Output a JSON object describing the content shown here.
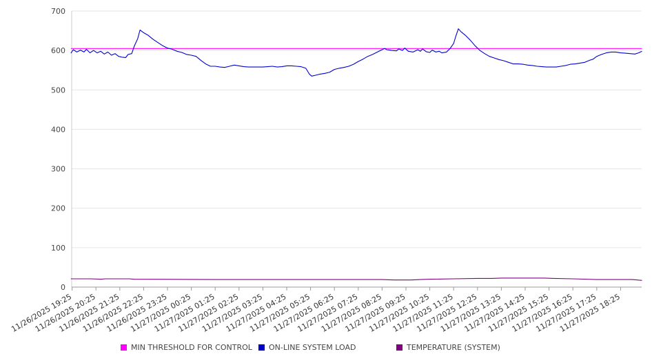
{
  "chart_data": {
    "type": "line",
    "ylim": [
      0,
      700
    ],
    "yticks": [
      0,
      100,
      200,
      300,
      400,
      500,
      600,
      700
    ],
    "x_labels": [
      "11/26/2025 19:25",
      "11/26/2025 20:25",
      "11/26/2025 21:25",
      "11/26/2025 22:25",
      "11/26/2025 23:25",
      "11/27/2025 00:25",
      "11/27/2025 01:25",
      "11/27/2025 02:25",
      "11/27/2025 03:25",
      "11/27/2025 04:25",
      "11/27/2025 05:25",
      "11/27/2025 06:25",
      "11/27/2025 07:25",
      "11/27/2025 08:25",
      "11/27/2025 09:25",
      "11/27/2025 10:25",
      "11/27/2025 11:25",
      "11/27/2025 12:25",
      "11/27/2025 13:25",
      "11/27/2025 14:25",
      "11/27/2025 15:25",
      "11/27/2025 16:25",
      "11/27/2025 17:25",
      "11/27/2025 18:25"
    ],
    "x_hours": [
      0,
      1,
      2,
      3,
      4,
      5,
      6,
      7,
      8,
      9,
      10,
      11,
      12,
      13,
      14,
      15,
      16,
      17,
      18,
      19,
      20,
      21,
      22,
      23
    ],
    "series": [
      {
        "name": "MIN THRESHOLD FOR CONTROL",
        "color": "#ff00ff",
        "points": [
          [
            -0.05,
            605
          ],
          [
            23.9,
            605
          ]
        ]
      },
      {
        "name": "ON-LINE SYSTEM LOAD",
        "color": "#0000cc",
        "points": [
          [
            -0.05,
            593
          ],
          [
            0.05,
            602
          ],
          [
            0.2,
            596
          ],
          [
            0.35,
            601
          ],
          [
            0.5,
            596
          ],
          [
            0.6,
            603
          ],
          [
            0.75,
            594
          ],
          [
            0.9,
            600
          ],
          [
            1.05,
            594
          ],
          [
            1.2,
            598
          ],
          [
            1.35,
            591
          ],
          [
            1.5,
            596
          ],
          [
            1.65,
            588
          ],
          [
            1.8,
            592
          ],
          [
            1.95,
            585
          ],
          [
            2.1,
            583
          ],
          [
            2.25,
            582
          ],
          [
            2.35,
            590
          ],
          [
            2.5,
            592
          ],
          [
            2.6,
            610
          ],
          [
            2.75,
            630
          ],
          [
            2.85,
            652
          ],
          [
            3.0,
            645
          ],
          [
            3.2,
            638
          ],
          [
            3.4,
            628
          ],
          [
            3.6,
            620
          ],
          [
            3.8,
            612
          ],
          [
            4.0,
            606
          ],
          [
            4.2,
            603
          ],
          [
            4.4,
            598
          ],
          [
            4.6,
            595
          ],
          [
            4.8,
            590
          ],
          [
            5.0,
            588
          ],
          [
            5.2,
            585
          ],
          [
            5.4,
            575
          ],
          [
            5.6,
            566
          ],
          [
            5.8,
            560
          ],
          [
            6.0,
            560
          ],
          [
            6.2,
            558
          ],
          [
            6.4,
            557
          ],
          [
            6.6,
            560
          ],
          [
            6.8,
            563
          ],
          [
            7.0,
            561
          ],
          [
            7.2,
            559
          ],
          [
            7.4,
            558
          ],
          [
            7.6,
            558
          ],
          [
            7.8,
            558
          ],
          [
            8.0,
            558
          ],
          [
            8.2,
            559
          ],
          [
            8.4,
            560
          ],
          [
            8.6,
            558
          ],
          [
            8.8,
            559
          ],
          [
            9.0,
            561
          ],
          [
            9.2,
            561
          ],
          [
            9.4,
            560
          ],
          [
            9.6,
            559
          ],
          [
            9.8,
            555
          ],
          [
            9.95,
            540
          ],
          [
            10.05,
            535
          ],
          [
            10.2,
            537
          ],
          [
            10.4,
            540
          ],
          [
            10.6,
            542
          ],
          [
            10.8,
            545
          ],
          [
            11.0,
            552
          ],
          [
            11.2,
            555
          ],
          [
            11.4,
            557
          ],
          [
            11.6,
            560
          ],
          [
            11.8,
            565
          ],
          [
            12.0,
            572
          ],
          [
            12.2,
            578
          ],
          [
            12.4,
            585
          ],
          [
            12.6,
            590
          ],
          [
            12.8,
            596
          ],
          [
            13.0,
            602
          ],
          [
            13.1,
            605
          ],
          [
            13.2,
            602
          ],
          [
            13.4,
            600
          ],
          [
            13.6,
            599
          ],
          [
            13.7,
            604
          ],
          [
            13.85,
            600
          ],
          [
            13.95,
            606
          ],
          [
            14.1,
            598
          ],
          [
            14.3,
            596
          ],
          [
            14.5,
            602
          ],
          [
            14.6,
            598
          ],
          [
            14.7,
            604
          ],
          [
            14.85,
            597
          ],
          [
            15.0,
            595
          ],
          [
            15.1,
            601
          ],
          [
            15.25,
            596
          ],
          [
            15.4,
            598
          ],
          [
            15.5,
            594
          ],
          [
            15.7,
            596
          ],
          [
            15.85,
            605
          ],
          [
            16.0,
            618
          ],
          [
            16.1,
            638
          ],
          [
            16.2,
            655
          ],
          [
            16.3,
            648
          ],
          [
            16.5,
            638
          ],
          [
            16.7,
            626
          ],
          [
            16.9,
            612
          ],
          [
            17.1,
            600
          ],
          [
            17.3,
            592
          ],
          [
            17.5,
            585
          ],
          [
            17.7,
            581
          ],
          [
            17.9,
            577
          ],
          [
            18.1,
            574
          ],
          [
            18.3,
            570
          ],
          [
            18.5,
            566
          ],
          [
            18.7,
            566
          ],
          [
            18.9,
            565
          ],
          [
            19.1,
            563
          ],
          [
            19.3,
            562
          ],
          [
            19.5,
            560
          ],
          [
            19.7,
            559
          ],
          [
            19.9,
            558
          ],
          [
            20.1,
            558
          ],
          [
            20.3,
            558
          ],
          [
            20.5,
            560
          ],
          [
            20.7,
            562
          ],
          [
            20.9,
            565
          ],
          [
            21.1,
            566
          ],
          [
            21.3,
            568
          ],
          [
            21.5,
            570
          ],
          [
            21.7,
            575
          ],
          [
            21.85,
            578
          ],
          [
            22.0,
            585
          ],
          [
            22.2,
            590
          ],
          [
            22.4,
            594
          ],
          [
            22.6,
            596
          ],
          [
            22.8,
            596
          ],
          [
            23.0,
            594
          ],
          [
            23.2,
            593
          ],
          [
            23.4,
            592
          ],
          [
            23.6,
            591
          ],
          [
            23.75,
            594
          ],
          [
            23.9,
            598
          ]
        ]
      },
      {
        "name": "TEMPERATURE (SYSTEM)",
        "color": "#800080",
        "points": [
          [
            -0.05,
            21
          ],
          [
            0.8,
            21
          ],
          [
            1.2,
            20
          ],
          [
            1.4,
            21
          ],
          [
            2.4,
            21
          ],
          [
            2.6,
            20
          ],
          [
            6.0,
            19
          ],
          [
            10.0,
            19
          ],
          [
            13.0,
            19
          ],
          [
            13.5,
            18
          ],
          [
            14.2,
            18
          ],
          [
            14.6,
            19
          ],
          [
            15.0,
            20
          ],
          [
            16.0,
            21
          ],
          [
            17.0,
            22
          ],
          [
            17.6,
            22
          ],
          [
            18.0,
            23
          ],
          [
            19.0,
            23
          ],
          [
            19.8,
            23
          ],
          [
            20.2,
            22
          ],
          [
            21.0,
            21
          ],
          [
            22.0,
            19
          ],
          [
            23.0,
            19
          ],
          [
            23.5,
            19
          ],
          [
            23.9,
            17
          ]
        ]
      }
    ]
  }
}
